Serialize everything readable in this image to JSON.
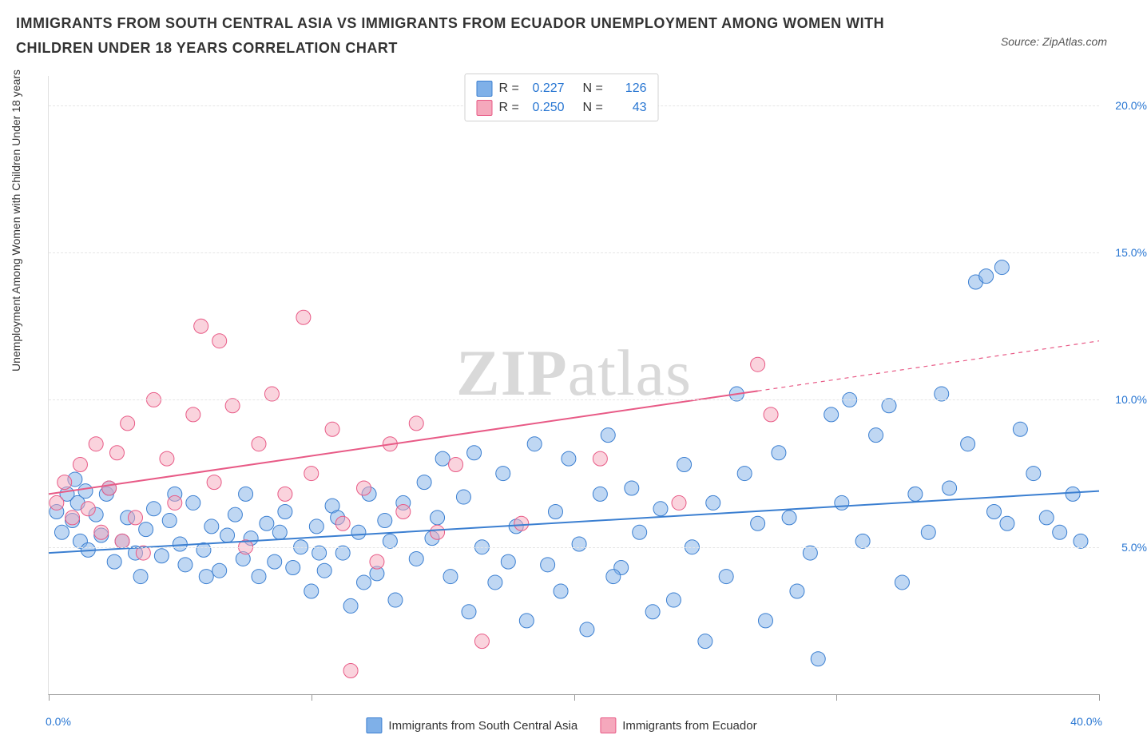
{
  "title": "IMMIGRANTS FROM SOUTH CENTRAL ASIA VS IMMIGRANTS FROM ECUADOR UNEMPLOYMENT AMONG WOMEN WITH CHILDREN UNDER 18 YEARS CORRELATION CHART",
  "source": "Source: ZipAtlas.com",
  "watermark_bold": "ZIP",
  "watermark_light": "atlas",
  "y_axis_label": "Unemployment Among Women with Children Under 18 years",
  "chart": {
    "type": "scatter",
    "xlim": [
      0,
      40
    ],
    "ylim": [
      0,
      21
    ],
    "x_ticks": [
      0,
      10,
      20,
      30,
      40
    ],
    "y_ticks": [
      5,
      10,
      15,
      20
    ],
    "y_tick_labels": [
      "5.0%",
      "10.0%",
      "15.0%",
      "20.0%"
    ],
    "x_tick_label_left": "0.0%",
    "x_tick_label_right": "40.0%",
    "background_color": "#ffffff",
    "grid_color": "#e5e5e5",
    "marker_radius": 9,
    "marker_opacity": 0.5,
    "line_width": 2,
    "series": [
      {
        "name": "Immigrants from South Central Asia",
        "color_fill": "#7fb0e8",
        "color_stroke": "#3b7fd1",
        "R": "0.227",
        "N": "126",
        "trend": {
          "x1": 0,
          "y1": 4.8,
          "x2": 40,
          "y2": 6.9
        },
        "points": [
          [
            0.3,
            6.2
          ],
          [
            0.5,
            5.5
          ],
          [
            0.7,
            6.8
          ],
          [
            0.9,
            5.9
          ],
          [
            1.1,
            6.5
          ],
          [
            1.2,
            5.2
          ],
          [
            1.4,
            6.9
          ],
          [
            1.5,
            4.9
          ],
          [
            1.8,
            6.1
          ],
          [
            2.0,
            5.4
          ],
          [
            2.2,
            6.8
          ],
          [
            2.5,
            4.5
          ],
          [
            2.8,
            5.2
          ],
          [
            3.0,
            6.0
          ],
          [
            3.3,
            4.8
          ],
          [
            3.7,
            5.6
          ],
          [
            4.0,
            6.3
          ],
          [
            4.3,
            4.7
          ],
          [
            4.6,
            5.9
          ],
          [
            5.0,
            5.1
          ],
          [
            5.2,
            4.4
          ],
          [
            5.5,
            6.5
          ],
          [
            5.9,
            4.9
          ],
          [
            6.2,
            5.7
          ],
          [
            6.5,
            4.2
          ],
          [
            6.8,
            5.4
          ],
          [
            7.1,
            6.1
          ],
          [
            7.4,
            4.6
          ],
          [
            7.7,
            5.3
          ],
          [
            8.0,
            4.0
          ],
          [
            8.3,
            5.8
          ],
          [
            8.6,
            4.5
          ],
          [
            9.0,
            6.2
          ],
          [
            9.3,
            4.3
          ],
          [
            9.6,
            5.0
          ],
          [
            10.0,
            3.5
          ],
          [
            10.2,
            5.7
          ],
          [
            10.5,
            4.2
          ],
          [
            10.8,
            6.4
          ],
          [
            11.2,
            4.8
          ],
          [
            11.5,
            3.0
          ],
          [
            11.8,
            5.5
          ],
          [
            12.2,
            6.8
          ],
          [
            12.5,
            4.1
          ],
          [
            12.8,
            5.9
          ],
          [
            13.2,
            3.2
          ],
          [
            13.5,
            6.5
          ],
          [
            14.0,
            4.6
          ],
          [
            14.3,
            7.2
          ],
          [
            14.6,
            5.3
          ],
          [
            15.0,
            8.0
          ],
          [
            15.3,
            4.0
          ],
          [
            15.8,
            6.7
          ],
          [
            16.2,
            8.2
          ],
          [
            16.5,
            5.0
          ],
          [
            17.0,
            3.8
          ],
          [
            17.3,
            7.5
          ],
          [
            17.8,
            5.7
          ],
          [
            18.2,
            2.5
          ],
          [
            18.5,
            8.5
          ],
          [
            19.0,
            4.4
          ],
          [
            19.3,
            6.2
          ],
          [
            19.8,
            8.0
          ],
          [
            20.2,
            5.1
          ],
          [
            20.5,
            2.2
          ],
          [
            21.0,
            6.8
          ],
          [
            21.3,
            8.8
          ],
          [
            21.8,
            4.3
          ],
          [
            22.2,
            7.0
          ],
          [
            22.5,
            5.5
          ],
          [
            23.0,
            2.8
          ],
          [
            23.3,
            6.3
          ],
          [
            23.8,
            3.2
          ],
          [
            24.2,
            7.8
          ],
          [
            24.5,
            5.0
          ],
          [
            25.0,
            1.8
          ],
          [
            25.3,
            6.5
          ],
          [
            25.8,
            4.0
          ],
          [
            26.2,
            10.2
          ],
          [
            26.5,
            7.5
          ],
          [
            27.0,
            5.8
          ],
          [
            27.3,
            2.5
          ],
          [
            27.8,
            8.2
          ],
          [
            28.2,
            6.0
          ],
          [
            28.5,
            3.5
          ],
          [
            29.0,
            4.8
          ],
          [
            29.3,
            1.2
          ],
          [
            29.8,
            9.5
          ],
          [
            30.2,
            6.5
          ],
          [
            30.5,
            10.0
          ],
          [
            31.0,
            5.2
          ],
          [
            31.5,
            8.8
          ],
          [
            32.0,
            9.8
          ],
          [
            32.5,
            3.8
          ],
          [
            33.0,
            6.8
          ],
          [
            33.5,
            5.5
          ],
          [
            34.0,
            10.2
          ],
          [
            34.3,
            7.0
          ],
          [
            35.0,
            8.5
          ],
          [
            35.3,
            14.0
          ],
          [
            35.7,
            14.2
          ],
          [
            36.3,
            14.5
          ],
          [
            36.0,
            6.2
          ],
          [
            36.5,
            5.8
          ],
          [
            37.0,
            9.0
          ],
          [
            37.5,
            7.5
          ],
          [
            38.0,
            6.0
          ],
          [
            38.5,
            5.5
          ],
          [
            39.0,
            6.8
          ],
          [
            39.3,
            5.2
          ],
          [
            1.0,
            7.3
          ],
          [
            2.3,
            7.0
          ],
          [
            3.5,
            4.0
          ],
          [
            4.8,
            6.8
          ],
          [
            6.0,
            4.0
          ],
          [
            7.5,
            6.8
          ],
          [
            8.8,
            5.5
          ],
          [
            10.3,
            4.8
          ],
          [
            11.0,
            6.0
          ],
          [
            12.0,
            3.8
          ],
          [
            13.0,
            5.2
          ],
          [
            14.8,
            6.0
          ],
          [
            16.0,
            2.8
          ],
          [
            17.5,
            4.5
          ],
          [
            19.5,
            3.5
          ],
          [
            21.5,
            4.0
          ]
        ]
      },
      {
        "name": "Immigrants from Ecuador",
        "color_fill": "#f5a8bc",
        "color_stroke": "#e85a86",
        "R": "0.250",
        "N": "43",
        "trend": {
          "x1": 0,
          "y1": 6.8,
          "x2": 27,
          "y2": 10.3
        },
        "trend_dashed": {
          "x1": 27,
          "y1": 10.3,
          "x2": 40,
          "y2": 12.0
        },
        "points": [
          [
            0.3,
            6.5
          ],
          [
            0.6,
            7.2
          ],
          [
            0.9,
            6.0
          ],
          [
            1.2,
            7.8
          ],
          [
            1.5,
            6.3
          ],
          [
            1.8,
            8.5
          ],
          [
            2.0,
            5.5
          ],
          [
            2.3,
            7.0
          ],
          [
            2.6,
            8.2
          ],
          [
            3.0,
            9.2
          ],
          [
            3.3,
            6.0
          ],
          [
            3.6,
            4.8
          ],
          [
            4.0,
            10.0
          ],
          [
            4.5,
            8.0
          ],
          [
            4.8,
            6.5
          ],
          [
            5.5,
            9.5
          ],
          [
            5.8,
            12.5
          ],
          [
            6.3,
            7.2
          ],
          [
            6.5,
            12.0
          ],
          [
            7.0,
            9.8
          ],
          [
            7.5,
            5.0
          ],
          [
            8.0,
            8.5
          ],
          [
            8.5,
            10.2
          ],
          [
            9.0,
            6.8
          ],
          [
            9.7,
            12.8
          ],
          [
            10.0,
            7.5
          ],
          [
            10.8,
            9.0
          ],
          [
            11.2,
            5.8
          ],
          [
            11.5,
            0.8
          ],
          [
            12.0,
            7.0
          ],
          [
            12.5,
            4.5
          ],
          [
            13.0,
            8.5
          ],
          [
            13.5,
            6.2
          ],
          [
            14.0,
            9.2
          ],
          [
            14.8,
            5.5
          ],
          [
            15.5,
            7.8
          ],
          [
            16.5,
            1.8
          ],
          [
            18.0,
            5.8
          ],
          [
            21.0,
            8.0
          ],
          [
            24.0,
            6.5
          ],
          [
            27.0,
            11.2
          ],
          [
            27.5,
            9.5
          ],
          [
            2.8,
            5.2
          ]
        ]
      }
    ]
  },
  "legend_top": {
    "r_label": "R =",
    "n_label": "N ="
  }
}
